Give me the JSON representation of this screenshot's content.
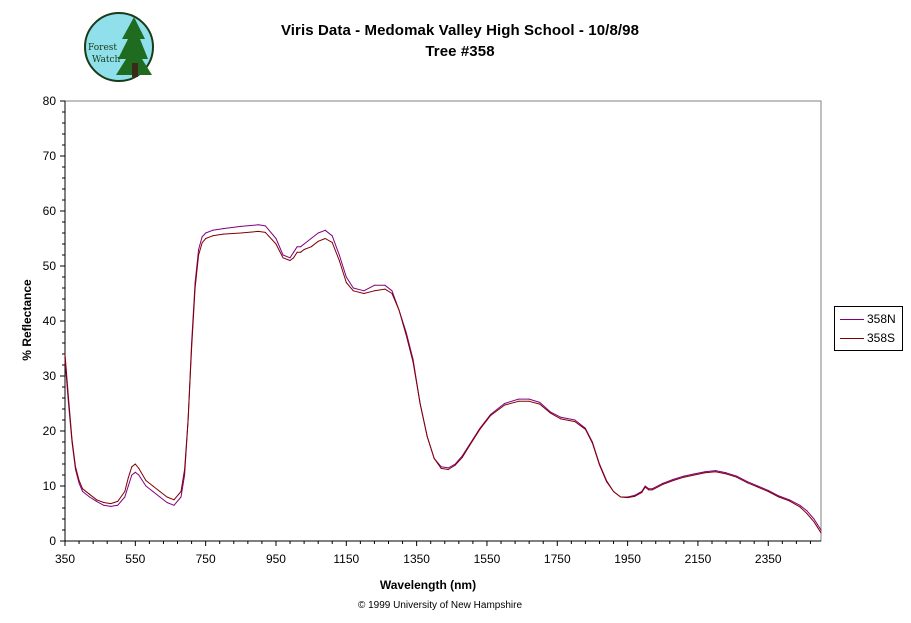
{
  "logo": {
    "text_line1": "Forest",
    "text_line2": "Watch"
  },
  "chart_data": {
    "type": "line",
    "title": "Viris Data - Medomak Valley High School - 10/8/98",
    "subtitle": "Tree #358",
    "xlabel": "Wavelength (nm)",
    "ylabel": "% Reflectance",
    "xlim": [
      350,
      2500
    ],
    "ylim": [
      0,
      80
    ],
    "x_ticks": [
      350,
      550,
      750,
      950,
      1150,
      1350,
      1550,
      1750,
      1950,
      2150,
      2350
    ],
    "y_ticks": [
      0,
      10,
      20,
      30,
      40,
      50,
      60,
      70,
      80
    ],
    "grid": false,
    "legend_position": "right",
    "series": [
      {
        "name": "358N",
        "color": "#800080",
        "x": [
          350,
          360,
          370,
          380,
          390,
          400,
          420,
          440,
          460,
          480,
          500,
          520,
          530,
          540,
          550,
          560,
          580,
          600,
          620,
          640,
          660,
          680,
          690,
          700,
          710,
          720,
          730,
          740,
          750,
          770,
          800,
          850,
          900,
          920,
          950,
          970,
          990,
          1000,
          1010,
          1020,
          1030,
          1050,
          1070,
          1090,
          1110,
          1130,
          1150,
          1170,
          1200,
          1230,
          1260,
          1280,
          1300,
          1320,
          1340,
          1360,
          1380,
          1400,
          1420,
          1440,
          1460,
          1480,
          1500,
          1530,
          1560,
          1600,
          1640,
          1670,
          1700,
          1730,
          1760,
          1800,
          1830,
          1850,
          1870,
          1890,
          1910,
          1930,
          1950,
          1970,
          1990,
          2000,
          2010,
          2020,
          2050,
          2080,
          2110,
          2140,
          2170,
          2200,
          2230,
          2260,
          2290,
          2320,
          2350,
          2380,
          2410,
          2440,
          2460,
          2480,
          2490,
          2500
        ],
        "y": [
          33,
          25,
          18,
          13,
          10.5,
          9,
          8,
          7.2,
          6.5,
          6.3,
          6.5,
          8,
          10,
          12,
          12.5,
          12,
          10,
          9,
          8,
          7,
          6.5,
          8,
          12,
          22,
          36,
          47,
          53,
          55.3,
          56,
          56.5,
          56.8,
          57.2,
          57.5,
          57.3,
          55,
          52,
          51.5,
          52.5,
          53.5,
          53.5,
          54,
          55,
          56,
          56.5,
          55.5,
          52,
          48,
          46,
          45.5,
          46.5,
          46.5,
          45.5,
          42,
          38,
          33,
          25,
          19,
          15,
          13.5,
          13.3,
          14,
          15.5,
          17.5,
          20.5,
          23,
          25,
          25.8,
          25.8,
          25.2,
          23.5,
          22.5,
          22,
          20.5,
          18,
          14,
          11,
          9,
          8,
          8,
          8.3,
          9,
          10,
          9.5,
          9.5,
          10.5,
          11.2,
          11.8,
          12.2,
          12.6,
          12.8,
          12.4,
          11.8,
          10.8,
          10,
          9.2,
          8.2,
          7.5,
          6.5,
          5.5,
          4,
          3,
          2
        ]
      },
      {
        "name": "358S",
        "color": "#800000",
        "x": [
          350,
          360,
          370,
          380,
          390,
          400,
          420,
          440,
          460,
          480,
          500,
          520,
          530,
          540,
          550,
          560,
          580,
          600,
          620,
          640,
          660,
          680,
          690,
          700,
          710,
          720,
          730,
          740,
          750,
          770,
          800,
          850,
          900,
          920,
          950,
          970,
          990,
          1000,
          1010,
          1020,
          1030,
          1050,
          1070,
          1090,
          1110,
          1130,
          1150,
          1170,
          1200,
          1230,
          1260,
          1280,
          1300,
          1320,
          1340,
          1360,
          1380,
          1400,
          1420,
          1440,
          1460,
          1480,
          1500,
          1530,
          1560,
          1600,
          1640,
          1670,
          1700,
          1730,
          1760,
          1800,
          1830,
          1850,
          1870,
          1890,
          1910,
          1930,
          1950,
          1970,
          1990,
          2000,
          2010,
          2020,
          2050,
          2080,
          2110,
          2140,
          2170,
          2200,
          2230,
          2260,
          2290,
          2320,
          2350,
          2380,
          2410,
          2440,
          2460,
          2480,
          2490,
          2500
        ],
        "y": [
          34,
          26,
          18.5,
          13.5,
          11,
          9.5,
          8.5,
          7.5,
          7,
          6.8,
          7.2,
          9,
          11.5,
          13.5,
          14,
          13.2,
          11,
          10,
          9,
          8,
          7.5,
          9,
          13,
          22,
          35,
          46,
          52,
          54.2,
          55,
          55.5,
          55.8,
          56,
          56.3,
          56.1,
          54,
          51.5,
          51,
          51.5,
          52.5,
          52.5,
          53,
          53.5,
          54.5,
          55,
          54.3,
          51,
          47,
          45.5,
          45,
          45.5,
          45.8,
          45,
          42,
          37.5,
          32.5,
          25,
          19,
          15,
          13.2,
          13,
          13.8,
          15.2,
          17.3,
          20.3,
          22.8,
          24.7,
          25.4,
          25.4,
          24.9,
          23.3,
          22.2,
          21.7,
          20.3,
          17.8,
          13.8,
          10.8,
          9,
          8,
          7.9,
          8.1,
          8.8,
          9.8,
          9.3,
          9.3,
          10.3,
          11,
          11.6,
          12,
          12.4,
          12.6,
          12.2,
          11.6,
          10.6,
          9.8,
          9,
          8,
          7.3,
          6.2,
          5,
          3.5,
          2.5,
          1.5
        ]
      }
    ]
  },
  "copyright": "© 1999 University of New Hampshire"
}
